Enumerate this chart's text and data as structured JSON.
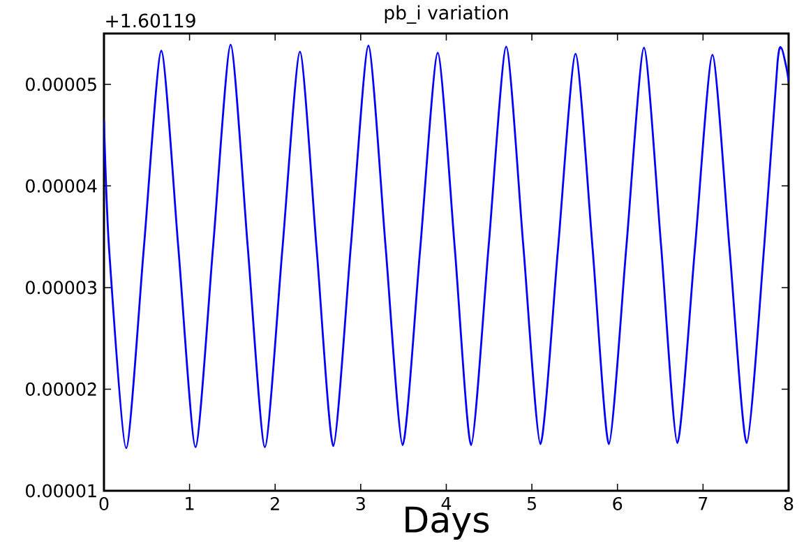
{
  "chart_data": {
    "type": "line",
    "title": "pb_i variation",
    "xlabel": "Days",
    "annotations": [
      "+1.60119"
    ],
    "x": [
      0,
      0.06,
      0.26,
      0.465,
      0.67,
      0.87,
      1.07,
      1.275,
      1.48,
      1.68,
      1.88,
      2.085,
      2.29,
      2.485,
      2.68,
      2.885,
      3.09,
      3.29,
      3.49,
      3.695,
      3.9,
      4.1,
      4.29,
      4.495,
      4.7,
      4.9,
      5.1,
      5.305,
      5.51,
      5.71,
      5.9,
      6.105,
      6.31,
      6.51,
      6.7,
      6.905,
      7.11,
      7.31,
      7.51,
      7.715,
      7.87,
      7.92,
      7.98,
      8.0
    ],
    "series": [
      {
        "color": "#0000ff",
        "values": [
          4.64e-05,
          3.38e-05,
          1.42e-05,
          3.38e-05,
          5.33e-05,
          3.38e-05,
          1.43e-05,
          3.4e-05,
          5.39e-05,
          3.4e-05,
          1.43e-05,
          3.38e-05,
          5.32e-05,
          3.38e-05,
          1.44e-05,
          3.41e-05,
          5.38e-05,
          3.41e-05,
          1.45e-05,
          3.38e-05,
          5.31e-05,
          3.38e-05,
          1.45e-05,
          3.41e-05,
          5.37e-05,
          3.41e-05,
          1.46e-05,
          3.38e-05,
          5.3e-05,
          3.38e-05,
          1.46e-05,
          3.41e-05,
          5.36e-05,
          3.41e-05,
          1.47e-05,
          3.38e-05,
          5.29e-05,
          3.38e-05,
          1.47e-05,
          3.41e-05,
          5.21e-05,
          5.35e-05,
          5.14e-05,
          5.03e-05
        ]
      }
    ],
    "xlim": [
      0,
      8
    ],
    "ylim": [
      1e-05,
      5.5e-05
    ],
    "xticks": [
      0,
      1,
      2,
      3,
      4,
      5,
      6,
      7,
      8
    ],
    "yticks": [
      {
        "value": 1e-05,
        "label": "0.00001"
      },
      {
        "value": 2e-05,
        "label": "0.00002"
      },
      {
        "value": 3e-05,
        "label": "0.00003"
      },
      {
        "value": 4e-05,
        "label": "0.00004"
      },
      {
        "value": 5e-05,
        "label": "0.00005"
      }
    ],
    "grid": false,
    "marker": "none",
    "line_style": "solid"
  }
}
